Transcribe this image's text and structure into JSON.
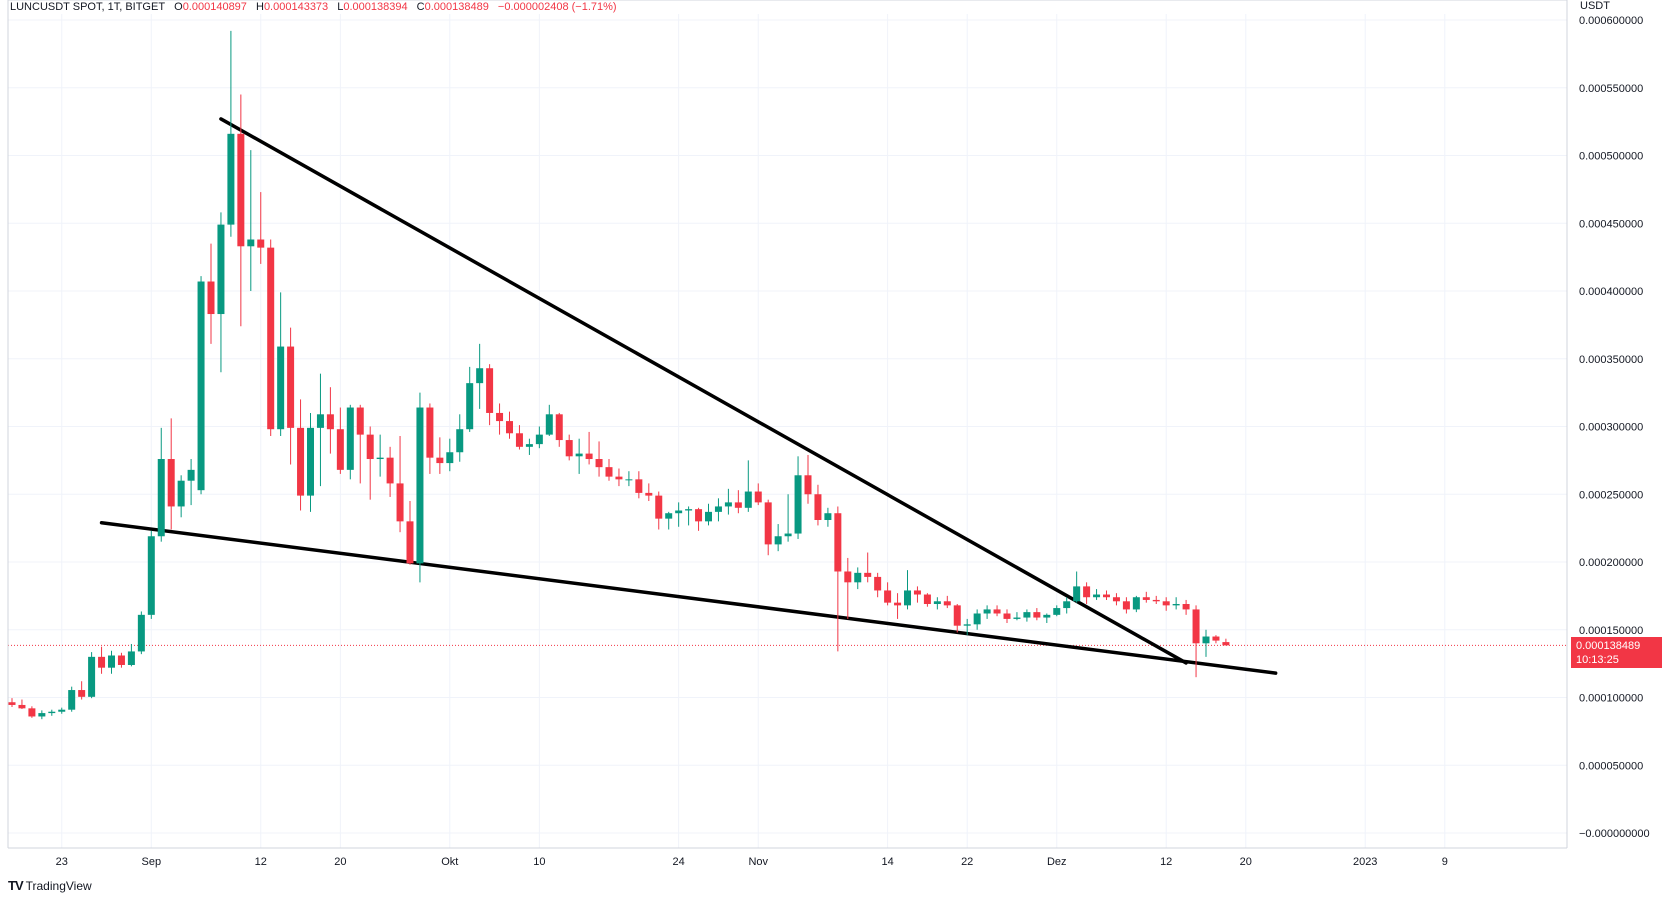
{
  "header": {
    "symbol": "LUNCUSDT SPOT, 1T, BITGET",
    "o_label": "O",
    "o": "0.000140897",
    "h_label": "H",
    "h": "0.000143373",
    "l_label": "L",
    "l": "0.000138394",
    "c_label": "C",
    "c": "0.000138489",
    "change": "−0.000002408 (−1.71%)"
  },
  "price_unit": "USDT",
  "last_price": {
    "value": "0.000138489",
    "countdown": "10:13:25"
  },
  "brand": {
    "name": "TradingView",
    "logo": "TV"
  },
  "colors": {
    "up": "#089981",
    "down": "#f23645",
    "trendline": "#000000",
    "grid": "#f0f3fa",
    "text": "#131722"
  },
  "chart_data": {
    "type": "candlestick",
    "x_unit": "day",
    "x_start": "2022-08-18",
    "ylim": [
      0,
      0.0006
    ],
    "y_ticks": [
      "0.000600000",
      "0.000550000",
      "0.000500000",
      "0.000450000",
      "0.000400000",
      "0.000350000",
      "0.000300000",
      "0.000250000",
      "0.000200000",
      "0.000150000",
      "0.000100000",
      "0.000050000",
      "−0.000000000"
    ],
    "y_tick_values": [
      0.0006,
      0.00055,
      0.0005,
      0.00045,
      0.0004,
      0.00035,
      0.0003,
      0.00025,
      0.0002,
      0.00015,
      0.0001,
      5e-05,
      0
    ],
    "x_ticks": [
      {
        "label": "23",
        "day": 5
      },
      {
        "label": "Sep",
        "day": 14
      },
      {
        "label": "12",
        "day": 25
      },
      {
        "label": "20",
        "day": 33
      },
      {
        "label": "Okt",
        "day": 44
      },
      {
        "label": "10",
        "day": 53
      },
      {
        "label": "24",
        "day": 67
      },
      {
        "label": "Nov",
        "day": 75
      },
      {
        "label": "14",
        "day": 88
      },
      {
        "label": "22",
        "day": 96
      },
      {
        "label": "Dez",
        "day": 105
      },
      {
        "label": "12",
        "day": 116
      },
      {
        "label": "20",
        "day": 124
      },
      {
        "label": "2023",
        "day": 136
      },
      {
        "label": "9",
        "day": 144
      }
    ],
    "candles": [
      [
        9.65e-05,
        9.95e-05,
        9.3e-05,
        9.45e-05
      ],
      [
        9.45e-05,
        9.85e-05,
        9.15e-05,
        9.2e-05
      ],
      [
        9.2e-05,
        9.35e-05,
        8.5e-05,
        8.6e-05
      ],
      [
        8.6e-05,
        9.05e-05,
        8.4e-05,
        8.85e-05
      ],
      [
        8.85e-05,
        9.1e-05,
        8.65e-05,
        8.95e-05
      ],
      [
        8.95e-05,
        9.25e-05,
        8.8e-05,
        9.1e-05
      ],
      [
        9.1e-05,
        0.000108,
        8.95e-05,
        0.0001055
      ],
      [
        0.0001055,
        0.000112,
        9.85e-05,
        0.0001005
      ],
      [
        0.0001005,
        0.0001335,
        9.95e-05,
        0.00013
      ],
      [
        0.00013,
        0.0001375,
        0.0001175,
        0.000122
      ],
      [
        0.000122,
        0.0001345,
        0.0001175,
        0.000131
      ],
      [
        0.000131,
        0.000133,
        0.000122,
        0.000124
      ],
      [
        0.000124,
        0.0001395,
        0.000123,
        0.000134
      ],
      [
        0.000134,
        0.0001635,
        0.000132,
        0.000161
      ],
      [
        0.000161,
        0.000223,
        0.000158,
        0.000219
      ],
      [
        0.000219,
        0.000299,
        0.000215,
        0.000276
      ],
      [
        0.000276,
        0.000306,
        0.000224,
        0.000241
      ],
      [
        0.000241,
        0.000264,
        0.000233,
        0.00026
      ],
      [
        0.00026,
        0.000276,
        0.000242,
        0.000268
      ],
      [
        0.000253,
        0.000411,
        0.00025,
        0.000407
      ],
      [
        0.000407,
        0.000435,
        0.000361,
        0.000383
      ],
      [
        0.000383,
        0.000458,
        0.00034,
        0.000449
      ],
      [
        0.000449,
        0.000592,
        0.00044,
        0.000516
      ],
      [
        0.000516,
        0.000545,
        0.000374,
        0.000433
      ],
      [
        0.000433,
        0.000504,
        0.0004,
        0.000438
      ],
      [
        0.000438,
        0.000473,
        0.00042,
        0.000432
      ],
      [
        0.000432,
        0.000438,
        0.000293,
        0.000298
      ],
      [
        0.000298,
        0.000399,
        0.000293,
        0.000359
      ],
      [
        0.000359,
        0.000373,
        0.000272,
        0.000299
      ],
      [
        0.000299,
        0.00032,
        0.000238,
        0.000249
      ],
      [
        0.000249,
        0.00031,
        0.000237,
        0.000299
      ],
      [
        0.000299,
        0.000339,
        0.000256,
        0.000309
      ],
      [
        0.000309,
        0.000329,
        0.00028,
        0.000298
      ],
      [
        0.000298,
        0.000314,
        0.000265,
        0.000268
      ],
      [
        0.000268,
        0.000316,
        0.000261,
        0.000314
      ],
      [
        0.000314,
        0.000316,
        0.000258,
        0.000294
      ],
      [
        0.000294,
        0.0003,
        0.000246,
        0.000276
      ],
      [
        0.000276,
        0.000294,
        0.000263,
        0.000277
      ],
      [
        0.000277,
        0.000285,
        0.000248,
        0.000258
      ],
      [
        0.000258,
        0.000293,
        0.000222,
        0.00023
      ],
      [
        0.00023,
        0.000245,
        0.000198,
        0.000199
      ],
      [
        0.000199,
        0.000325,
        0.000185,
        0.000314
      ],
      [
        0.000314,
        0.000317,
        0.000265,
        0.000277
      ],
      [
        0.000277,
        0.000292,
        0.000265,
        0.000273
      ],
      [
        0.000273,
        0.000291,
        0.000267,
        0.000281
      ],
      [
        0.000281,
        0.000309,
        0.000274,
        0.000298
      ],
      [
        0.000298,
        0.000344,
        0.000296,
        0.000332
      ],
      [
        0.000332,
        0.000361,
        0.000313,
        0.000343
      ],
      [
        0.000343,
        0.000346,
        0.000301,
        0.00031
      ],
      [
        0.00031,
        0.000317,
        0.000294,
        0.000304
      ],
      [
        0.000304,
        0.000311,
        0.000291,
        0.000295
      ],
      [
        0.000295,
        0.000301,
        0.000283,
        0.000285
      ],
      [
        0.000285,
        0.000291,
        0.000279,
        0.000287
      ],
      [
        0.000287,
        0.0003,
        0.000284,
        0.000294
      ],
      [
        0.000294,
        0.000316,
        0.000293,
        0.000309
      ],
      [
        0.000309,
        0.00031,
        0.000285,
        0.00029
      ],
      [
        0.00029,
        0.000294,
        0.000275,
        0.000278
      ],
      [
        0.000278,
        0.000291,
        0.000265,
        0.00028
      ],
      [
        0.00028,
        0.000296,
        0.000272,
        0.000276
      ],
      [
        0.000276,
        0.000289,
        0.000263,
        0.00027
      ],
      [
        0.00027,
        0.000276,
        0.00026,
        0.000263
      ],
      [
        0.000263,
        0.000269,
        0.000256,
        0.000261
      ],
      [
        0.000261,
        0.000267,
        0.000256,
        0.000261
      ],
      [
        0.000261,
        0.000267,
        0.000247,
        0.000251
      ],
      [
        0.000251,
        0.000258,
        0.000245,
        0.000249
      ],
      [
        0.000249,
        0.000252,
        0.000224,
        0.000232
      ],
      [
        0.000232,
        0.000237,
        0.000224,
        0.000236
      ],
      [
        0.000236,
        0.000244,
        0.000226,
        0.000238
      ],
      [
        0.000238,
        0.000241,
        0.000227,
        0.000239
      ],
      [
        0.000239,
        0.00024,
        0.000223,
        0.00023
      ],
      [
        0.00023,
        0.000243,
        0.000227,
        0.000237
      ],
      [
        0.000237,
        0.000247,
        0.00023,
        0.000241
      ],
      [
        0.000241,
        0.000254,
        0.000235,
        0.000244
      ],
      [
        0.000244,
        0.000253,
        0.000236,
        0.00024
      ],
      [
        0.00024,
        0.000275,
        0.000237,
        0.000252
      ],
      [
        0.000252,
        0.000258,
        0.000242,
        0.000244
      ],
      [
        0.000244,
        0.000246,
        0.000205,
        0.000213
      ],
      [
        0.000213,
        0.000228,
        0.000208,
        0.000219
      ],
      [
        0.000219,
        0.00025,
        0.000215,
        0.000221
      ],
      [
        0.000221,
        0.000278,
        0.000217,
        0.000264
      ],
      [
        0.000264,
        0.000279,
        0.000243,
        0.00025
      ],
      [
        0.00025,
        0.000257,
        0.000227,
        0.000231
      ],
      [
        0.000231,
        0.00024,
        0.000226,
        0.000236
      ],
      [
        0.000236,
        0.000241,
        0.000134,
        0.000193
      ],
      [
        0.000193,
        0.000203,
        0.000158,
        0.000185
      ],
      [
        0.000185,
        0.000196,
        0.00018,
        0.000192
      ],
      [
        0.000192,
        0.000207,
        0.000185,
        0.000189
      ],
      [
        0.000189,
        0.000192,
        0.000174,
        0.000179
      ],
      [
        0.000179,
        0.000185,
        0.000168,
        0.00017
      ],
      [
        0.00017,
        0.000177,
        0.000158,
        0.000168
      ],
      [
        0.000168,
        0.000194,
        0.000165,
        0.000179
      ],
      [
        0.000179,
        0.000182,
        0.00017,
        0.000176
      ],
      [
        0.000176,
        0.000177,
        0.000167,
        0.000169
      ],
      [
        0.000169,
        0.000174,
        0.000165,
        0.000171
      ],
      [
        0.000171,
        0.000175,
        0.000166,
        0.000168
      ],
      [
        0.000168,
        0.000169,
        0.000148,
        0.000153
      ],
      [
        0.000153,
        0.000158,
        0.000146,
        0.000154
      ],
      [
        0.000154,
        0.000165,
        0.00015,
        0.000162
      ],
      [
        0.000162,
        0.000168,
        0.000158,
        0.000165
      ],
      [
        0.000165,
        0.000168,
        0.00016,
        0.000162
      ],
      [
        0.000162,
        0.000165,
        0.000155,
        0.000158
      ],
      [
        0.000158,
        0.000163,
        0.000157,
        0.000159
      ],
      [
        0.000159,
        0.000165,
        0.000156,
        0.000163
      ],
      [
        0.000163,
        0.000166,
        0.000157,
        0.000159
      ],
      [
        0.000159,
        0.000162,
        0.000155,
        0.000161
      ],
      [
        0.000161,
        0.000168,
        0.00016,
        0.000166
      ],
      [
        0.000166,
        0.000174,
        0.000162,
        0.000171
      ],
      [
        0.000171,
        0.000193,
        0.00017,
        0.000182
      ],
      [
        0.000182,
        0.000185,
        0.000169,
        0.000174
      ],
      [
        0.000174,
        0.00018,
        0.000172,
        0.000176
      ],
      [
        0.000176,
        0.000179,
        0.000172,
        0.000174
      ],
      [
        0.000174,
        0.000177,
        0.000168,
        0.000171
      ],
      [
        0.000171,
        0.000174,
        0.000162,
        0.000165
      ],
      [
        0.000165,
        0.000175,
        0.000163,
        0.000174
      ],
      [
        0.000174,
        0.000178,
        0.00017,
        0.000172
      ],
      [
        0.000172,
        0.000175,
        0.000169,
        0.000171
      ],
      [
        0.000171,
        0.000174,
        0.000164,
        0.000168
      ],
      [
        0.000168,
        0.000174,
        0.000165,
        0.000169
      ],
      [
        0.000169,
        0.000172,
        0.000161,
        0.000165
      ],
      [
        0.000165,
        0.000168,
        0.000115,
        0.00014
      ],
      [
        0.00014,
        0.00015,
        0.00013,
        0.000145
      ],
      [
        0.000145,
        0.000146,
        0.00014,
        0.000142
      ],
      [
        0.0001409,
        0.0001434,
        0.0001384,
        0.0001385
      ]
    ],
    "trendlines": [
      {
        "name": "upper",
        "from": {
          "day": 21,
          "price": 0.000527
        },
        "to": {
          "day": 118,
          "price": 0.0001255
        }
      },
      {
        "name": "lower",
        "from": {
          "day": 9,
          "price": 0.000229
        },
        "to": {
          "day": 127,
          "price": 0.000118
        }
      }
    ]
  }
}
